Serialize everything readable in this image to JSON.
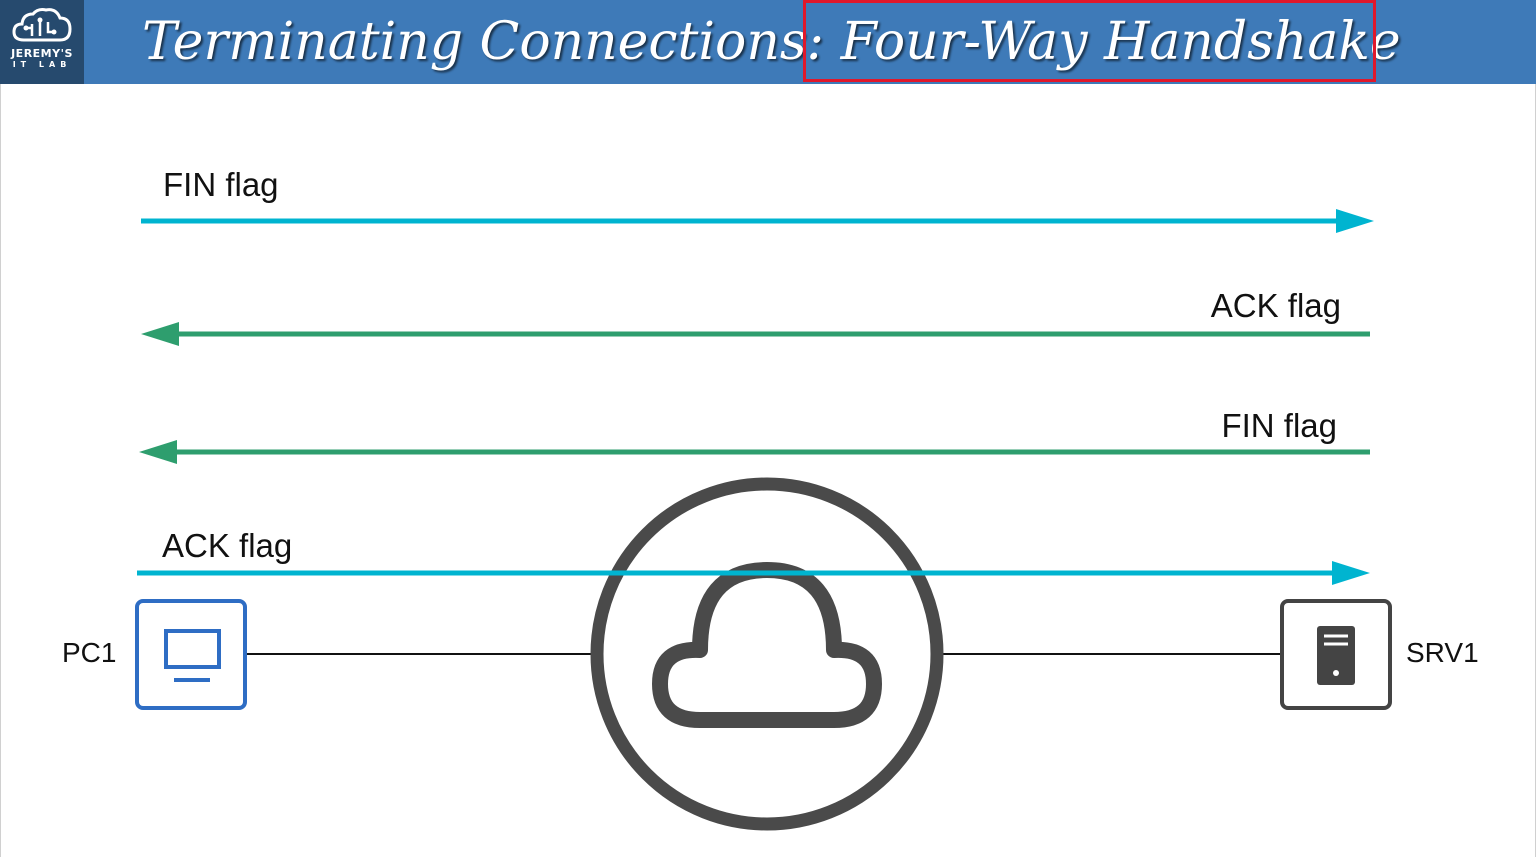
{
  "header": {
    "logo": {
      "line1": "JEREMY'S",
      "line2": "IT LAB",
      "icon": "cloud-brain-icon"
    },
    "title_prefix": "Terminating Connections:",
    "title_highlight": "Four-Way Handshake"
  },
  "messages": [
    {
      "label": "FIN flag",
      "direction": "PC1 → SRV1",
      "color": "#00b4d0"
    },
    {
      "label": "ACK flag",
      "direction": "SRV1 → PC1",
      "color": "#2e9e6e"
    },
    {
      "label": "FIN flag",
      "direction": "SRV1 → PC1",
      "color": "#2e9e6e"
    },
    {
      "label": "ACK flag",
      "direction": "PC1 → SRV1",
      "color": "#00b4d0"
    }
  ],
  "devices": {
    "pc": {
      "label": "PC1",
      "icon": "pc-monitor-icon",
      "color": "#2e6dc4"
    },
    "server": {
      "label": "SRV1",
      "icon": "server-icon",
      "color": "#444444"
    },
    "network": {
      "icon": "cloud-network-icon",
      "color": "#4a4a4a"
    }
  },
  "colors": {
    "title_bar": "#3e7ab8",
    "highlight_box": "#e0182b"
  }
}
